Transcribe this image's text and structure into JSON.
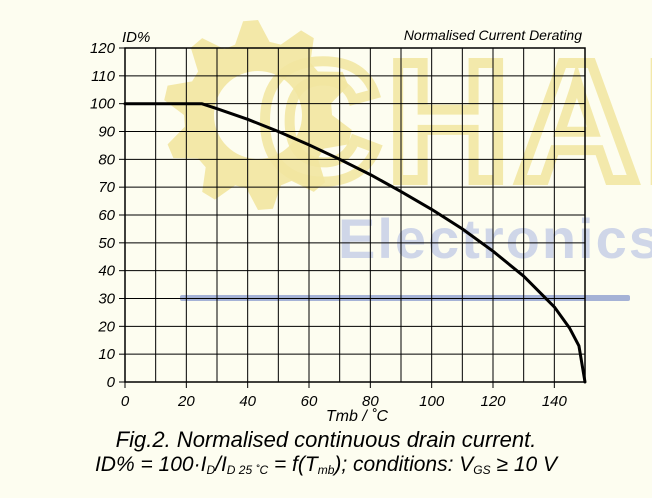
{
  "chart_data": {
    "type": "line",
    "title": "Normalised Current Derating",
    "xlabel": "Tmb / ˚C",
    "ylabel": "ID%",
    "xlim": [
      0,
      150
    ],
    "ylim": [
      0,
      120
    ],
    "x_ticks": [
      "0",
      "20",
      "40",
      "60",
      "80",
      "100",
      "120",
      "140"
    ],
    "y_ticks": [
      "0",
      "10",
      "20",
      "30",
      "40",
      "50",
      "60",
      "70",
      "80",
      "90",
      "100",
      "110",
      "120"
    ],
    "grid": true,
    "series": [
      {
        "x": [
          0,
          10,
          20,
          25,
          30,
          40,
          50,
          60,
          70,
          80,
          90,
          100,
          110,
          120,
          130,
          140,
          145,
          148,
          150
        ],
        "y": [
          100,
          100,
          100,
          100,
          98.2,
          94.4,
          90,
          85.2,
          80,
          74.5,
          68.4,
          62,
          55,
          47,
          38,
          27,
          19.3,
          13,
          0
        ]
      }
    ],
    "colors": {
      "line": "#000000",
      "grid": "#000000",
      "background": "#fdfdf0"
    }
  },
  "watermark": {
    "text": "CHAK",
    "subtext": "Electronics",
    "colors": {
      "gear": "#f2e6a0",
      "letters": "#f2e6a0",
      "subtext": "#cfd6e8",
      "bar": "#8f9fcf"
    }
  },
  "caption": {
    "line1": "Fig.2.   Normalised continuous drain current.",
    "line2_parts": {
      "lead": "ID% = 100·I",
      "sub1": "D",
      "slash": "/I",
      "sub2": "D 25 ˚C",
      "mid": " = f(T",
      "sub3": "mb",
      "mid2": "); conditions: V",
      "sub4": "GS",
      "tail": " ≥ 10 V"
    }
  }
}
